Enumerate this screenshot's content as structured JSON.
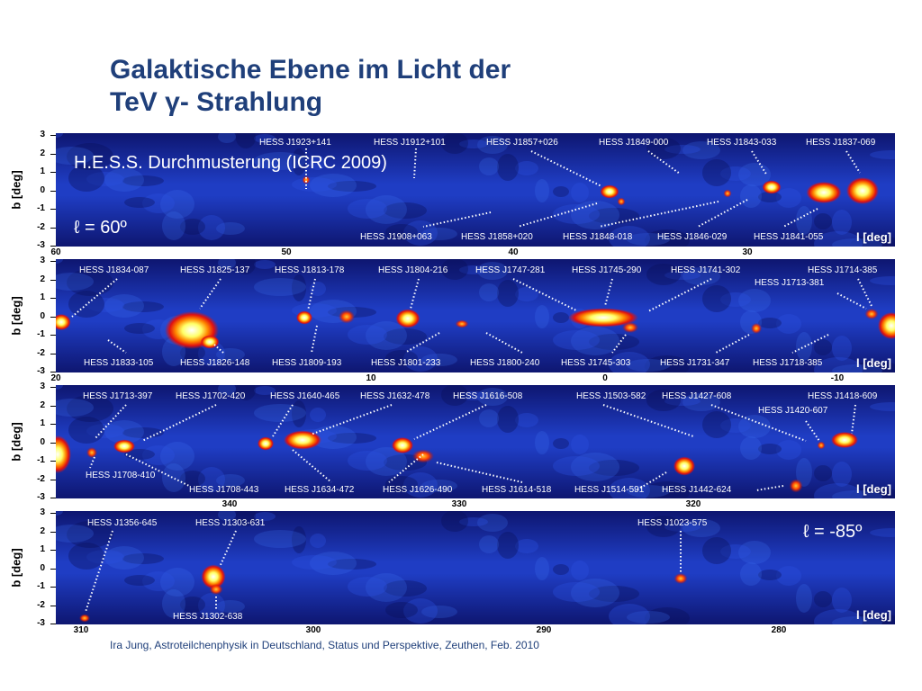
{
  "title_line1": "Galaktische Ebene im Licht der",
  "title_line2": "TeV γ- Strahlung",
  "credit": "Ira Jung, Astroteilchenphysik in Deutschland, Status und Perspektive, Zeuthen, Feb. 2010",
  "y_axis_label": "b [deg]",
  "x_axis_label": "l [deg]",
  "y_ticks": [
    "3",
    "2",
    "1",
    "0",
    "-1",
    "-2",
    "-3"
  ],
  "survey_label": "H.E.S.S. Durchmusterung (ICRC 2009)",
  "start_label": "ℓ = 60º",
  "end_label": "ℓ = -85º",
  "panels": [
    {
      "x_ticks": [
        "60",
        "50",
        "40",
        "30"
      ],
      "top": [
        "HESS J1923+141",
        "HESS J1912+101",
        "HESS J1857+026",
        "HESS J1849-000",
        "HESS J1843-033",
        "HESS J1837-069"
      ],
      "bottom": [
        "HESS J1908+063",
        "HESS J1858+020",
        "HESS J1848-018",
        "HESS J1846-029",
        "HESS J1841-055"
      ]
    },
    {
      "x_ticks": [
        "20",
        "10",
        "0",
        "-10"
      ],
      "top": [
        "HESS J1834-087",
        "HESS J1825-137",
        "HESS J1813-178",
        "HESS J1804-216",
        "HESS J1747-281",
        "HESS J1745-290",
        "HESS J1741-302",
        "HESS J1714-385",
        "HESS J1713-381"
      ],
      "bottom": [
        "HESS J1833-105",
        "HESS J1826-148",
        "HESS J1809-193",
        "HESS J1801-233",
        "HESS J1800-240",
        "HESS J1745-303",
        "HESS J1731-347",
        "HESS J1718-385"
      ]
    },
    {
      "x_ticks": [
        "340",
        "330",
        "320"
      ],
      "top": [
        "HESS J1713-397",
        "HESS J1702-420",
        "HESS J1640-465",
        "HESS J1632-478",
        "HESS J1616-508",
        "HESS J1503-582",
        "HESS J1427-608",
        "HESS J1418-609",
        "HESS J1420-607"
      ],
      "bottom": [
        "HESS J1708-410",
        "HESS J1708-443",
        "HESS J1634-472",
        "HESS J1626-490",
        "HESS J1614-518",
        "HESS J1514-591",
        "HESS J1442-624"
      ]
    },
    {
      "x_ticks": [
        "310",
        "300",
        "290",
        "280"
      ],
      "top": [
        "HESS J1356-645",
        "HESS J1303-631",
        "HESS J1023-575"
      ],
      "bottom": [
        "HESS J1302-638"
      ]
    }
  ]
}
